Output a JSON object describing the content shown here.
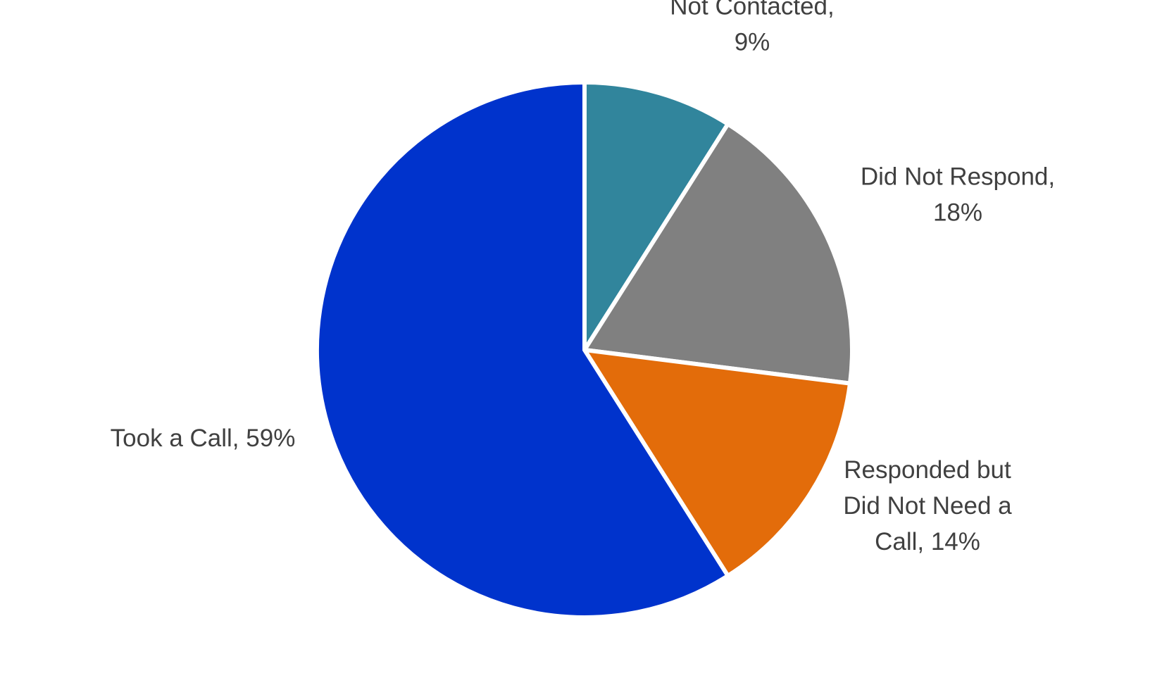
{
  "chart_data": {
    "type": "pie",
    "start_angle_deg": 0,
    "direction": "clockwise",
    "slices": [
      {
        "name": "Not Contacted",
        "value": 9,
        "label_lines": [
          "Not Contacted,",
          "9%"
        ],
        "color": "#31859c"
      },
      {
        "name": "Did Not Respond",
        "value": 18,
        "label_lines": [
          "Did Not Respond,",
          "18%"
        ],
        "color": "#808080"
      },
      {
        "name": "Responded but Did Not Need a Call",
        "value": 14,
        "label_lines": [
          "Responded but",
          "Did Not Need a",
          "Call, 14%"
        ],
        "color": "#e36c0a"
      },
      {
        "name": "Took a Call",
        "value": 59,
        "label_lines": [
          "Took a Call, 59%"
        ],
        "color": "#0033cc"
      }
    ]
  }
}
